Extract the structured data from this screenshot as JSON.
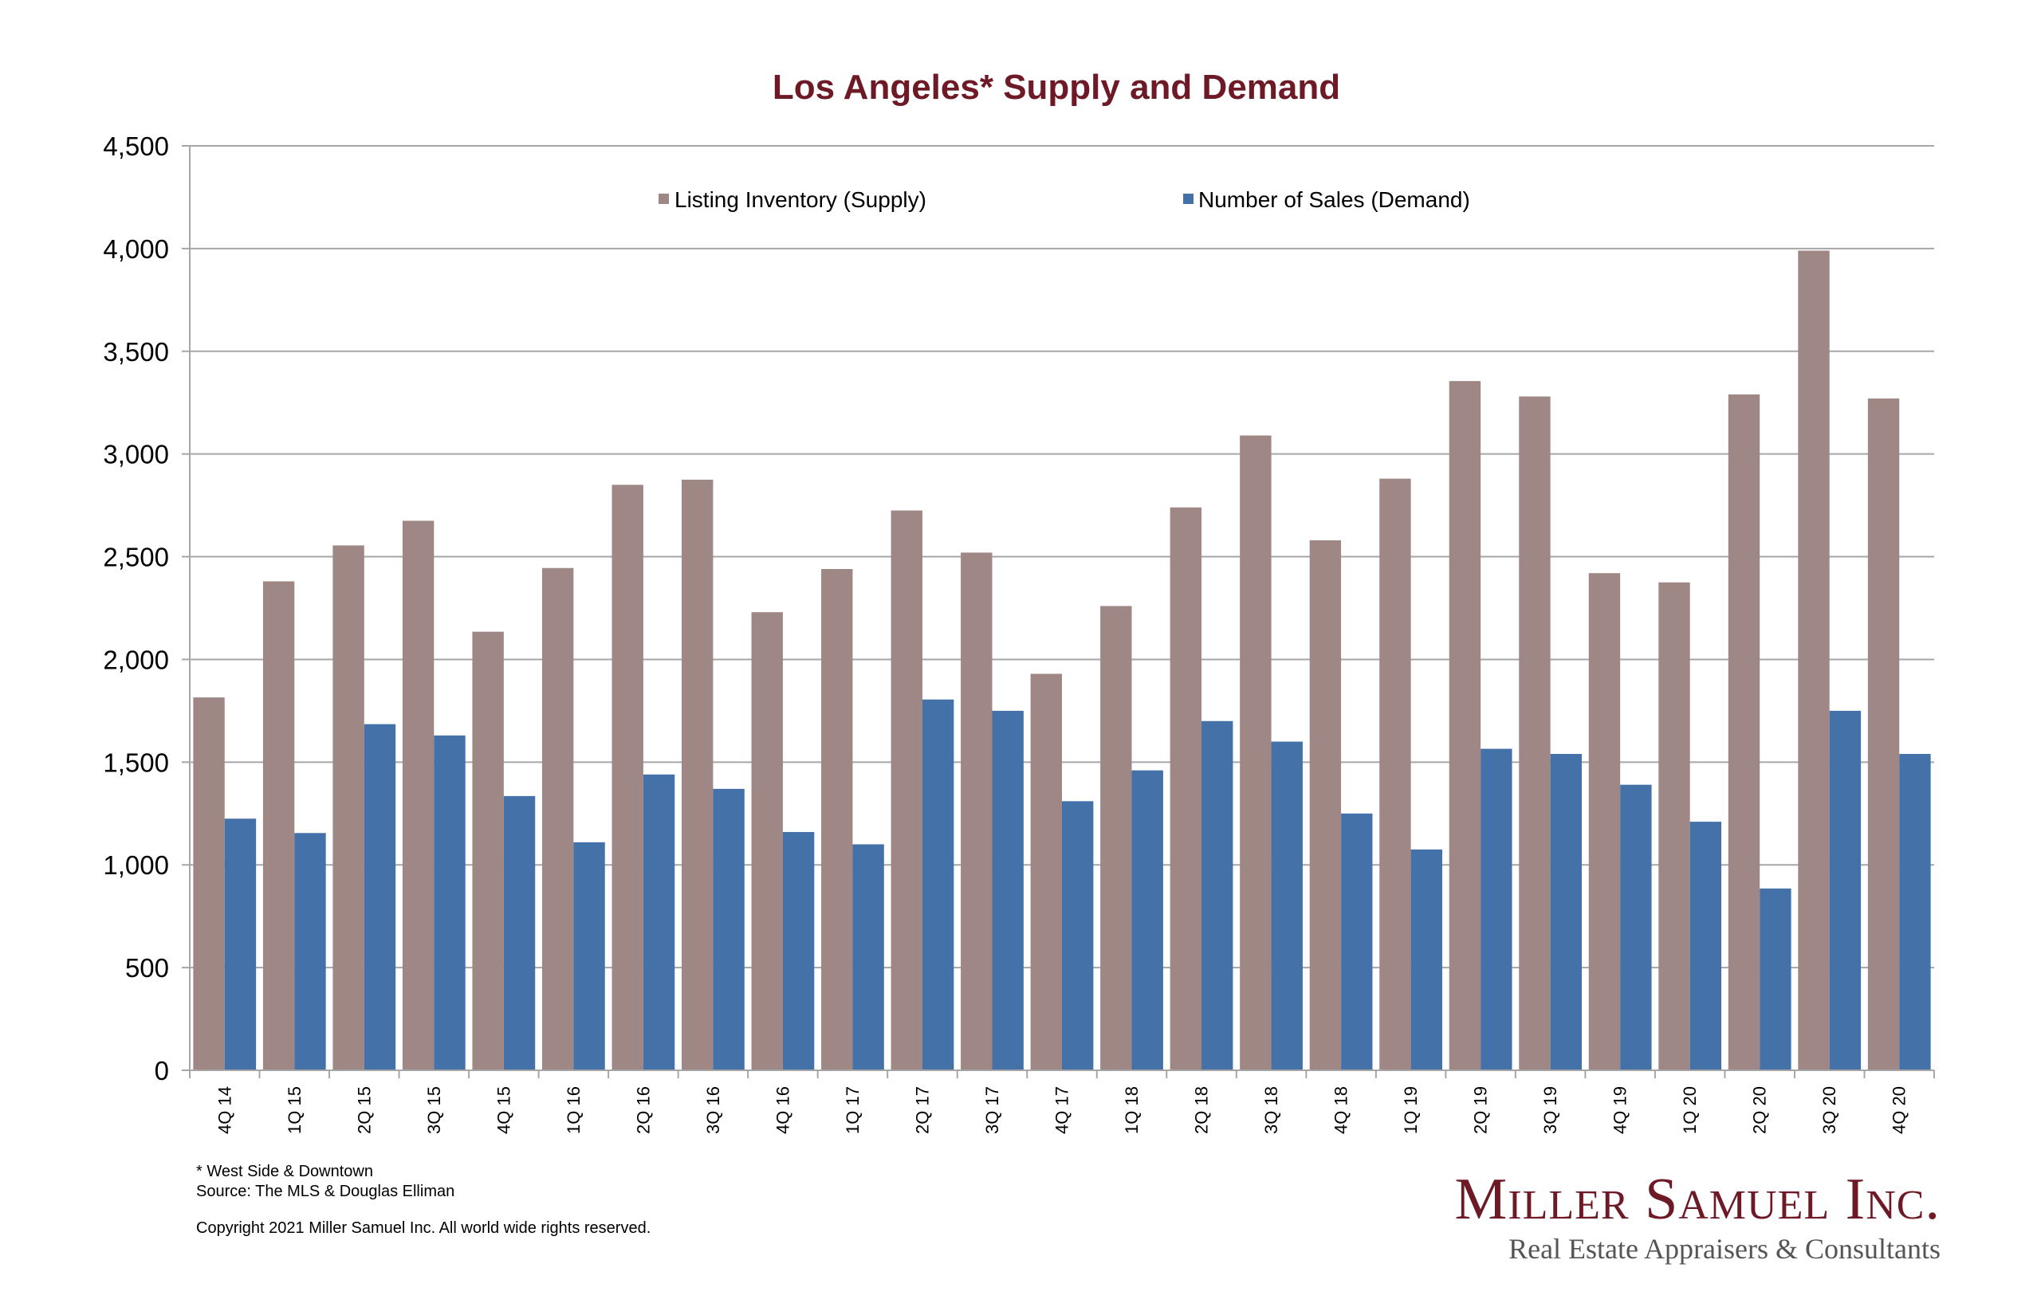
{
  "colors": {
    "supply": "#9e8785",
    "demand": "#4472a8",
    "title": "#6d1a26",
    "grid": "#a6a6a6",
    "logo": "#6d1a26"
  },
  "footnotes": {
    "line1": "* West Side & Downtown",
    "line2": "Source: The MLS & Douglas Elliman",
    "copyright": "Copyright 2021 Miller Samuel Inc.  All world wide rights reserved."
  },
  "logo": {
    "name": "Miller Samuel Inc.",
    "tagline": "Real Estate Appraisers & Consultants"
  },
  "chart_data": {
    "type": "bar",
    "title": "Los Angeles* Supply and Demand",
    "xlabel": "",
    "ylabel": "",
    "ylim": [
      0,
      4500
    ],
    "yticks": [
      0,
      500,
      1000,
      1500,
      2000,
      2500,
      3000,
      3500,
      4000,
      4500
    ],
    "ytick_labels": [
      "0",
      "500",
      "1,000",
      "1,500",
      "2,000",
      "2,500",
      "3,000",
      "3,500",
      "4,000",
      "4,500"
    ],
    "grid": true,
    "legend_position": "top-center",
    "categories": [
      "4Q 14",
      "1Q 15",
      "2Q 15",
      "3Q 15",
      "4Q 15",
      "1Q 16",
      "2Q 16",
      "3Q 16",
      "4Q 16",
      "1Q 17",
      "2Q 17",
      "3Q 17",
      "4Q 17",
      "1Q 18",
      "2Q 18",
      "3Q 18",
      "4Q 18",
      "1Q 19",
      "2Q 19",
      "3Q 19",
      "4Q 19",
      "1Q 20",
      "2Q 20",
      "3Q 20",
      "4Q 20"
    ],
    "series": [
      {
        "name": "Listing Inventory (Supply)",
        "color": "#9e8785",
        "values": [
          1815,
          2380,
          2555,
          2675,
          2135,
          2445,
          2850,
          2875,
          2230,
          2440,
          2725,
          2520,
          1930,
          2260,
          2740,
          3090,
          2580,
          2880,
          3355,
          3280,
          2420,
          2375,
          3290,
          3990,
          3270
        ]
      },
      {
        "name": "Number of Sales (Demand)",
        "color": "#4472a8",
        "values": [
          1225,
          1155,
          1685,
          1630,
          1335,
          1110,
          1440,
          1370,
          1160,
          1100,
          1805,
          1750,
          1310,
          1460,
          1700,
          1600,
          1250,
          1075,
          1565,
          1540,
          1390,
          1210,
          885,
          1750,
          1540
        ]
      }
    ]
  }
}
